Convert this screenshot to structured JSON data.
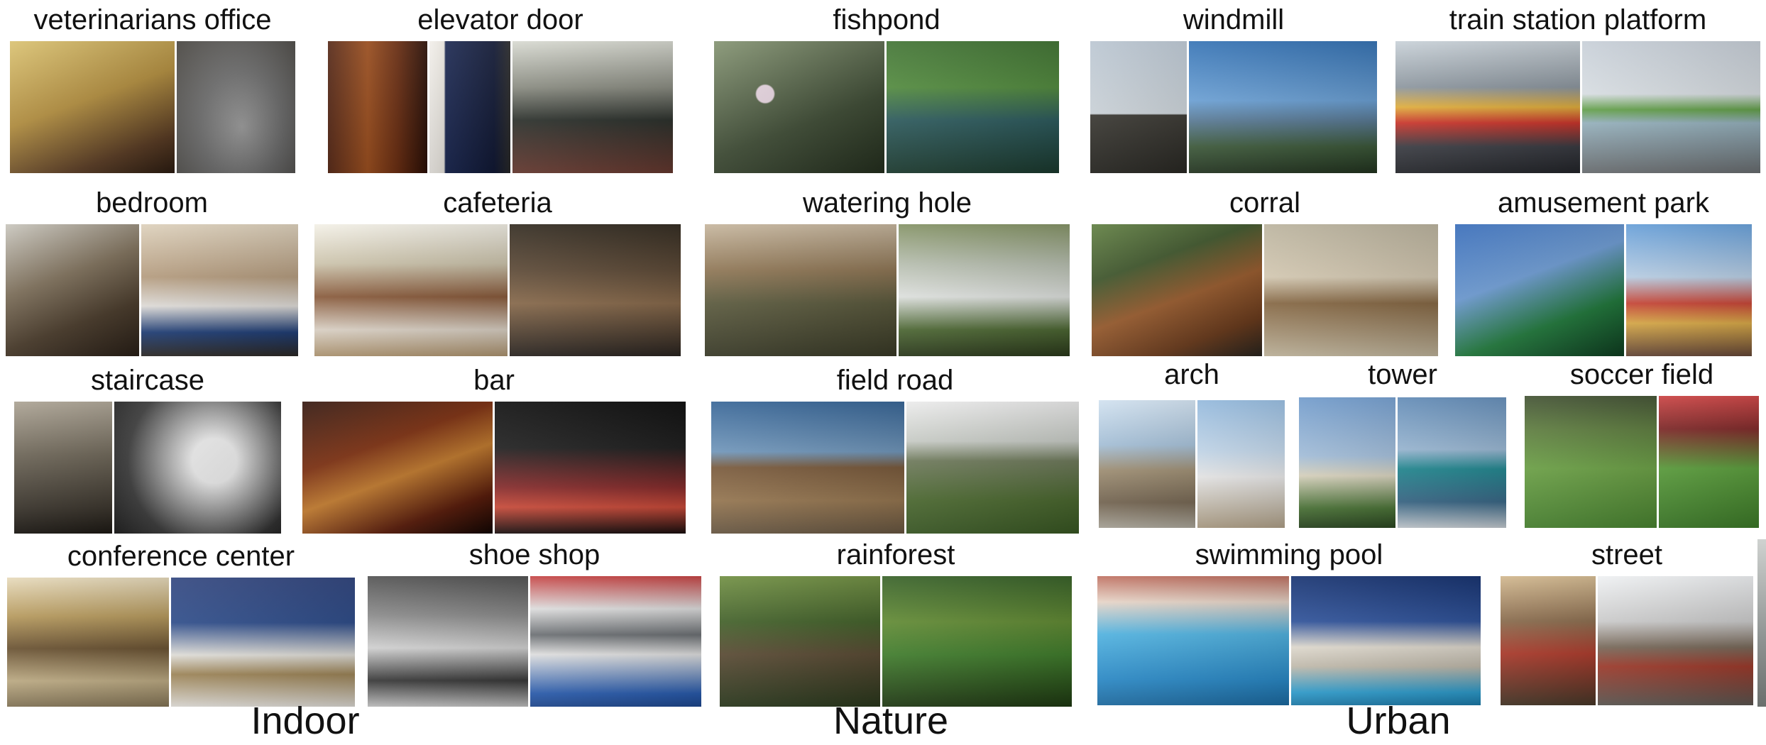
{
  "scenes": {
    "vet": "veterinarians office",
    "elevator": "elevator door",
    "fishpond": "fishpond",
    "windmill": "windmill",
    "train": "train station platform",
    "bedroom": "bedroom",
    "cafeteria": "cafeteria",
    "wateringhole": "watering hole",
    "corral": "corral",
    "amusement": "amusement park",
    "staircase": "staircase",
    "bar": "bar",
    "fieldroad": "field road",
    "arch": "arch",
    "tower": "tower",
    "soccer": "soccer field",
    "conference": "conference center",
    "shoeshop": "shoe shop",
    "rainforest": "rainforest",
    "pool": "swimming pool",
    "street": "street"
  },
  "groups": {
    "indoor": "Indoor",
    "nature": "Nature",
    "urban": "Urban"
  }
}
